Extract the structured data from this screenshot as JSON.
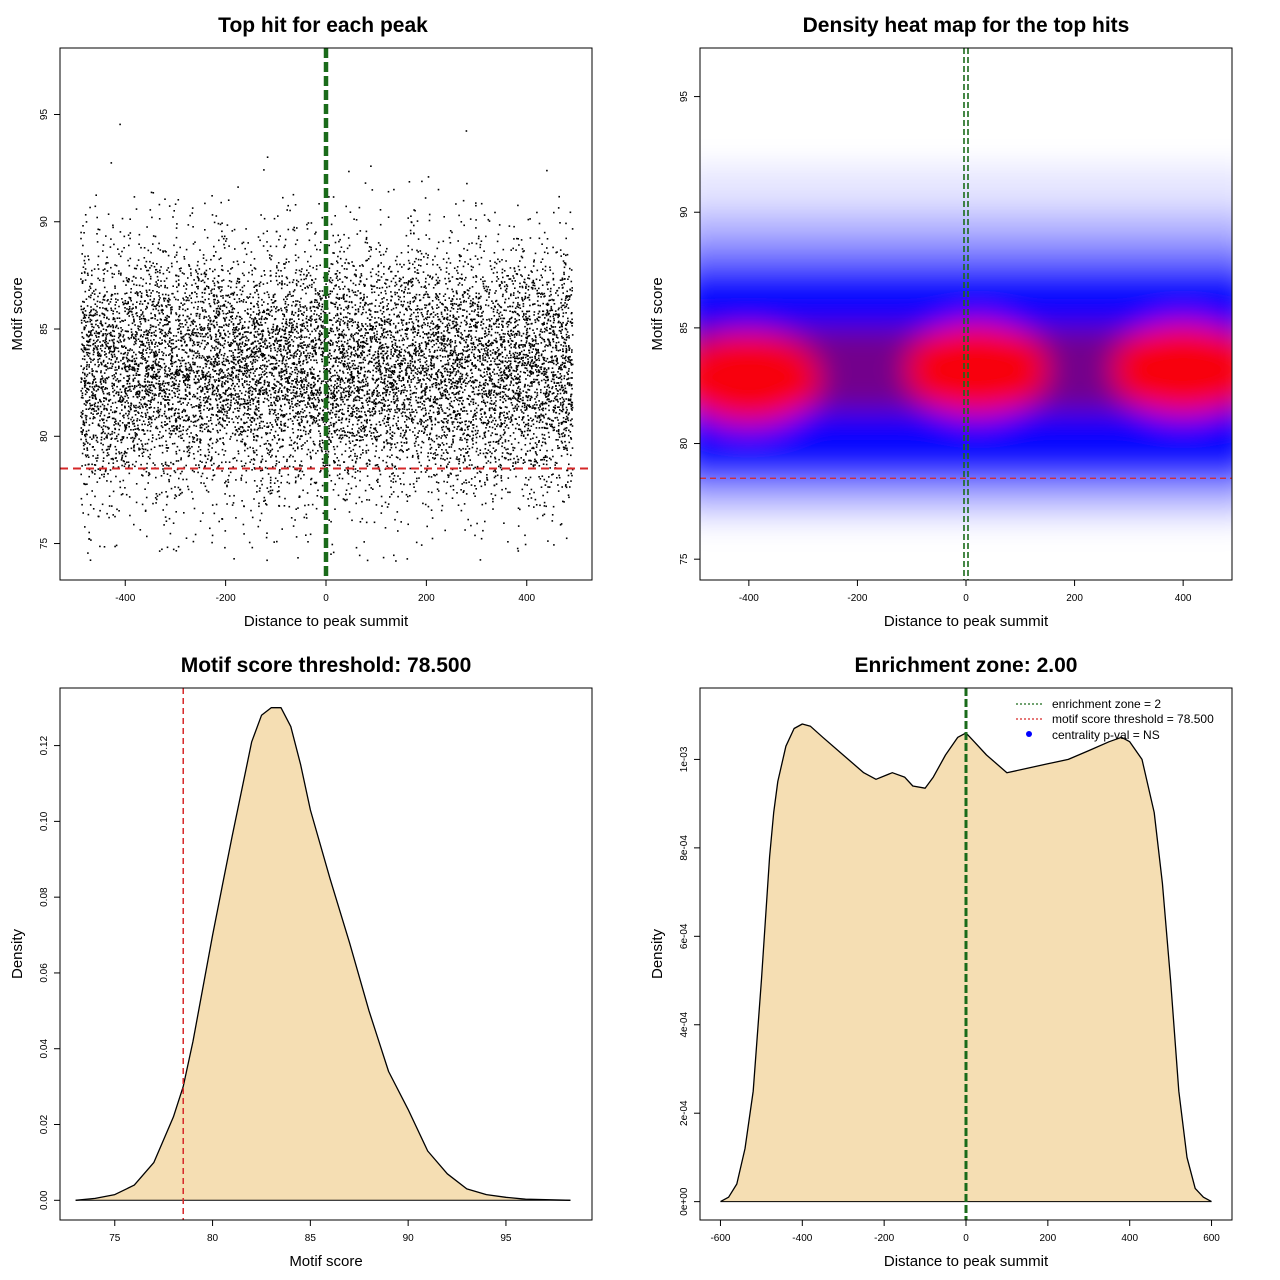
{
  "colors": {
    "threshold": "#d62728",
    "zone": "#1a6b1a",
    "fill": "#f5deb3",
    "points": "#000000",
    "heat_low": "#ffffff",
    "heat_mid": "#0000ff",
    "heat_high": "#ff0000"
  },
  "chart_data": [
    {
      "type": "scatter",
      "title": "Top hit for each peak",
      "xlabel": "Distance to peak summit",
      "ylabel": "Motif score",
      "xlim": [
        -530,
        530
      ],
      "ylim": [
        73.3,
        98.1
      ],
      "xticks": [
        -400,
        -200,
        0,
        200,
        400
      ],
      "yticks": [
        75,
        80,
        85,
        90,
        95
      ],
      "xtick_labels": [
        "-400",
        "-200",
        "0",
        "200",
        "400"
      ],
      "ytick_labels": [
        "75",
        "80",
        "85",
        "90",
        "95"
      ],
      "x_range": [
        -490,
        490
      ],
      "score_mean": 83.2,
      "score_sd": 2.9,
      "n_points": 11000,
      "threshold": 78.5,
      "zone_center": 0
    },
    {
      "type": "heatmap",
      "title": "Density heat map for the top hits",
      "xlabel": "Distance to peak summit",
      "ylabel": "Motif score",
      "xlim": [
        -490,
        490
      ],
      "ylim": [
        74.1,
        97.1
      ],
      "xticks": [
        -400,
        -200,
        0,
        200,
        400
      ],
      "yticks": [
        75,
        80,
        85,
        90,
        95
      ],
      "xtick_labels": [
        "-400",
        "-200",
        "0",
        "200",
        "400"
      ],
      "ytick_labels": [
        "75",
        "80",
        "85",
        "90",
        "95"
      ],
      "hotspots": [
        {
          "x": -400,
          "y": 82.8
        },
        {
          "x": 20,
          "y": 83.2
        },
        {
          "x": 400,
          "y": 83.2
        }
      ],
      "threshold": 78.5,
      "zone_center": 0
    },
    {
      "type": "area",
      "title": "Motif score threshold: 78.500",
      "xlabel": "Motif score",
      "ylabel": "Density",
      "xlim": [
        72.2,
        99.4
      ],
      "ylim": [
        -0.0052,
        0.1352
      ],
      "xticks": [
        75,
        80,
        85,
        90,
        95
      ],
      "yticks": [
        0,
        0.02,
        0.04,
        0.06,
        0.08,
        0.1,
        0.12
      ],
      "xtick_labels": [
        "75",
        "80",
        "85",
        "90",
        "95"
      ],
      "ytick_labels": [
        "0.00",
        "0.02",
        "0.04",
        "0.06",
        "0.08",
        "0.10",
        "0.12"
      ],
      "x": [
        73.0,
        74.0,
        75.0,
        76.0,
        77.0,
        78.0,
        78.5,
        79.0,
        80.0,
        80.5,
        81.0,
        82.0,
        82.5,
        83.0,
        83.5,
        84.0,
        84.5,
        85.0,
        86.0,
        87.0,
        88.0,
        89.0,
        90.0,
        91.0,
        92.0,
        93.0,
        94.0,
        95.0,
        96.0,
        98.3
      ],
      "y": [
        0.0,
        0.0005,
        0.0015,
        0.004,
        0.01,
        0.022,
        0.03,
        0.042,
        0.07,
        0.083,
        0.096,
        0.121,
        0.128,
        0.13,
        0.13,
        0.125,
        0.115,
        0.103,
        0.085,
        0.068,
        0.05,
        0.034,
        0.024,
        0.013,
        0.007,
        0.003,
        0.0015,
        0.0008,
        0.0003,
        0.0
      ],
      "threshold": 78.5
    },
    {
      "type": "area",
      "title": "Enrichment zone: 2.00",
      "xlabel": "Distance to peak summit",
      "ylabel": "Density",
      "xlim": [
        -650,
        650
      ],
      "ylim": [
        -4.15e-05,
        0.0011615
      ],
      "xticks": [
        -600,
        -400,
        -200,
        0,
        200,
        400,
        600
      ],
      "yticks": [
        0,
        0.0002,
        0.0004,
        0.0006,
        0.0008,
        0.001
      ],
      "xtick_labels": [
        "-600",
        "-400",
        "-200",
        "0",
        "200",
        "400",
        "600"
      ],
      "ytick_labels": [
        "0e+00",
        "2e-04",
        "4e-04",
        "6e-04",
        "8e-04",
        "1e-03"
      ],
      "x": [
        -600,
        -580,
        -560,
        -540,
        -520,
        -500,
        -480,
        -470,
        -460,
        -440,
        -420,
        -400,
        -380,
        -350,
        -300,
        -250,
        -220,
        -180,
        -150,
        -130,
        -100,
        -80,
        -50,
        -20,
        0,
        20,
        50,
        100,
        150,
        200,
        250,
        300,
        350,
        380,
        400,
        430,
        460,
        480,
        500,
        520,
        540,
        560,
        580,
        600
      ],
      "y": [
        0.0,
        1e-05,
        4e-05,
        0.00012,
        0.00025,
        0.0005,
        0.00078,
        0.00088,
        0.00095,
        0.00103,
        0.00107,
        0.00108,
        0.001075,
        0.00105,
        0.00101,
        0.00097,
        0.000955,
        0.00097,
        0.00096,
        0.00094,
        0.000935,
        0.00096,
        0.00101,
        0.00105,
        0.00106,
        0.00104,
        0.00101,
        0.00097,
        0.00098,
        0.00099,
        0.001,
        0.00102,
        0.00104,
        0.00105,
        0.00104,
        0.001,
        0.00088,
        0.00072,
        0.0005,
        0.00025,
        0.0001,
        3e-05,
        1e-05,
        0.0
      ],
      "zone_center": 0,
      "legend": [
        {
          "label": "enrichment zone = 2",
          "style": "dotted-green"
        },
        {
          "label": "motif score threshold = 78.500",
          "style": "dotted-red"
        },
        {
          "label": "centrality p-val = NS",
          "style": "blue-dot"
        }
      ]
    }
  ]
}
